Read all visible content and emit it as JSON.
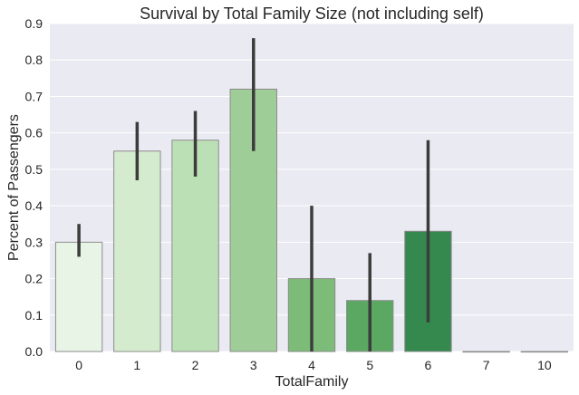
{
  "chart_data": {
    "type": "bar",
    "title": "Survival by Total Family Size (not including self)",
    "xlabel": "TotalFamily",
    "ylabel": "Percent of Passengers",
    "ylim": [
      0,
      0.9
    ],
    "yticks": [
      "0.0",
      "0.1",
      "0.2",
      "0.3",
      "0.4",
      "0.5",
      "0.6",
      "0.7",
      "0.8",
      "0.9"
    ],
    "grid": true,
    "categories": [
      "0",
      "1",
      "2",
      "3",
      "4",
      "5",
      "6",
      "7",
      "10"
    ],
    "values": [
      0.3,
      0.55,
      0.58,
      0.72,
      0.2,
      0.14,
      0.33,
      0.0,
      0.0
    ],
    "error_bars": [
      [
        0.26,
        0.35
      ],
      [
        0.47,
        0.63
      ],
      [
        0.48,
        0.66
      ],
      [
        0.55,
        0.86
      ],
      [
        0.0,
        0.4
      ],
      [
        0.0,
        0.27
      ],
      [
        0.08,
        0.58
      ],
      [
        0.0,
        0.0
      ],
      [
        0.0,
        0.0
      ]
    ],
    "colors": {
      "plot_background": "#EAEAF2",
      "grid": "#FFFFFF",
      "error_bar": "#3C3C3C",
      "bar_edge": "#8C8C8C",
      "bars": [
        "#E8F4E5",
        "#D4EBCE",
        "#BCE0B5",
        "#9FCD97",
        "#7DBC78",
        "#5AA862",
        "#35894E",
        "#1E6F38",
        "#0B4F24"
      ]
    }
  }
}
